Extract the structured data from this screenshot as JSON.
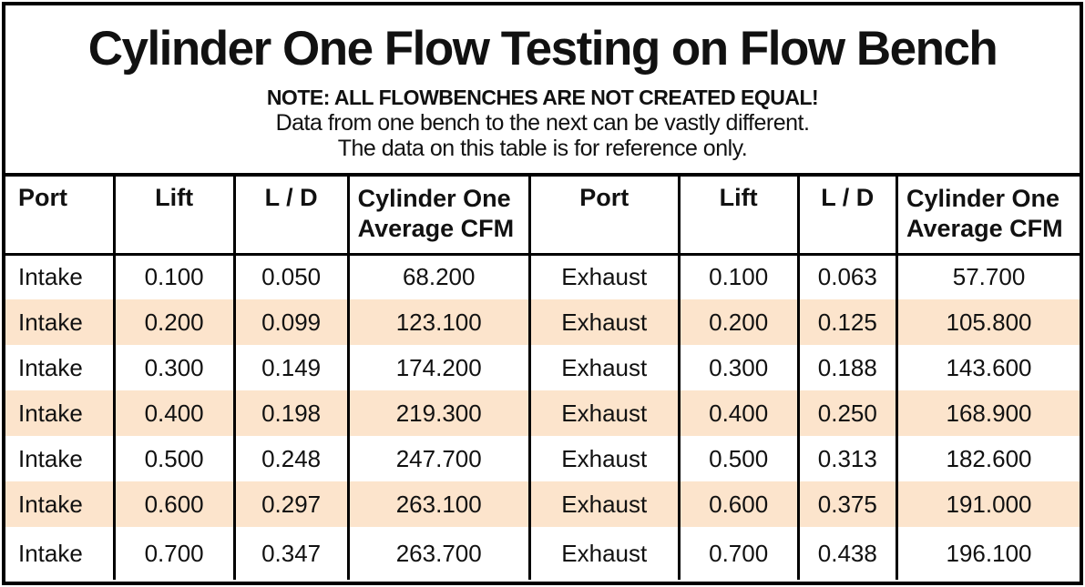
{
  "title": "Cylinder One Flow Testing on Flow Bench",
  "note": {
    "line1": "NOTE: ALL FLOWBENCHES ARE NOT CREATED EQUAL!",
    "line2": "Data from one bench to the next can be vastly different.",
    "line3": "The data on this table is for reference only."
  },
  "colors": {
    "row_highlight": "#FCE4CC",
    "border": "#000000",
    "text": "#111111",
    "background": "#FFFFFF"
  },
  "table": {
    "header": {
      "port": "Port",
      "lift": "Lift",
      "ld": "L / D",
      "cfm_line1": "Cylinder One",
      "cfm_line2": "Average CFM"
    },
    "rows": [
      {
        "port": "Intake",
        "lift": "0.100",
        "ld": "0.050",
        "cfm": "68.200",
        "port2": "Exhaust",
        "lift2": "0.100",
        "ld2": "0.063",
        "cfm2": "57.700"
      },
      {
        "port": "Intake",
        "lift": "0.200",
        "ld": "0.099",
        "cfm": "123.100",
        "port2": "Exhaust",
        "lift2": "0.200",
        "ld2": "0.125",
        "cfm2": "105.800"
      },
      {
        "port": "Intake",
        "lift": "0.300",
        "ld": "0.149",
        "cfm": "174.200",
        "port2": "Exhaust",
        "lift2": "0.300",
        "ld2": "0.188",
        "cfm2": "143.600"
      },
      {
        "port": "Intake",
        "lift": "0.400",
        "ld": "0.198",
        "cfm": "219.300",
        "port2": "Exhaust",
        "lift2": "0.400",
        "ld2": "0.250",
        "cfm2": "168.900"
      },
      {
        "port": "Intake",
        "lift": "0.500",
        "ld": "0.248",
        "cfm": "247.700",
        "port2": "Exhaust",
        "lift2": "0.500",
        "ld2": "0.313",
        "cfm2": "182.600"
      },
      {
        "port": "Intake",
        "lift": "0.600",
        "ld": "0.297",
        "cfm": "263.100",
        "port2": "Exhaust",
        "lift2": "0.600",
        "ld2": "0.375",
        "cfm2": "191.000"
      },
      {
        "port": "Intake",
        "lift": "0.700",
        "ld": "0.347",
        "cfm": "263.700",
        "port2": "Exhaust",
        "lift2": "0.700",
        "ld2": "0.438",
        "cfm2": "196.100"
      }
    ]
  },
  "chart_data": {
    "type": "table",
    "title": "Cylinder One Flow Testing on Flow Bench",
    "subtitle": "NOTE: ALL FLOWBENCHES ARE NOT CREATED EQUAL! Data from one bench to the next can be vastly different. The data on this table is for reference only.",
    "columns": [
      "Port",
      "Lift",
      "L / D",
      "Cylinder One Average CFM",
      "Port",
      "Lift",
      "L / D",
      "Cylinder One Average CFM"
    ],
    "series": [
      {
        "name": "Intake",
        "lift": [
          0.1,
          0.2,
          0.3,
          0.4,
          0.5,
          0.6,
          0.7
        ],
        "l_over_d": [
          0.05,
          0.099,
          0.149,
          0.198,
          0.248,
          0.297,
          0.347
        ],
        "average_cfm": [
          68.2,
          123.1,
          174.2,
          219.3,
          247.7,
          263.1,
          263.7
        ]
      },
      {
        "name": "Exhaust",
        "lift": [
          0.1,
          0.2,
          0.3,
          0.4,
          0.5,
          0.6,
          0.7
        ],
        "l_over_d": [
          0.063,
          0.125,
          0.188,
          0.25,
          0.313,
          0.375,
          0.438
        ],
        "average_cfm": [
          57.7,
          105.8,
          143.6,
          168.9,
          182.6,
          191.0,
          196.1
        ]
      }
    ],
    "layout": {
      "shaded_rows": [
        2,
        4,
        6
      ],
      "shading_color": "#FCE4CC",
      "grid": "vertical-only-in-body"
    }
  }
}
